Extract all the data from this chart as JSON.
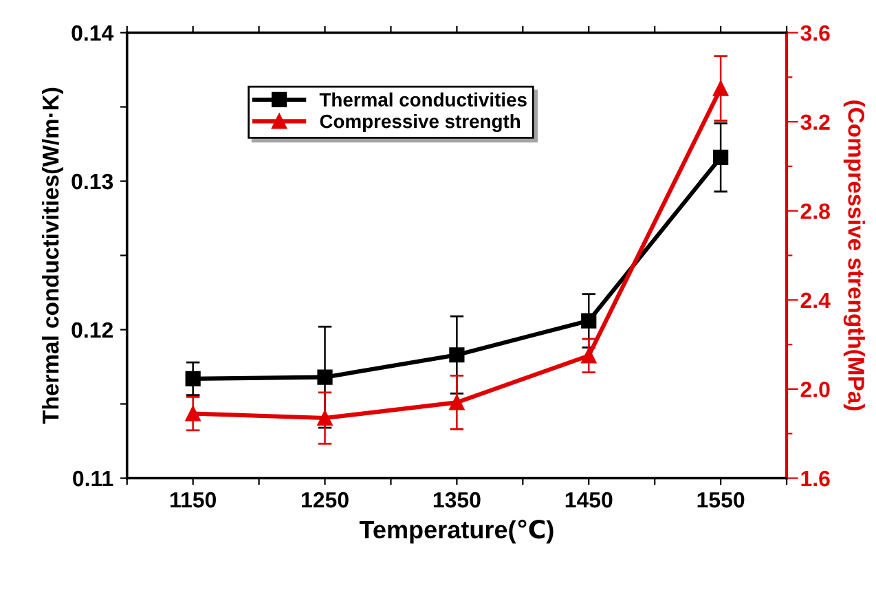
{
  "chart_data": {
    "type": "line",
    "xlabel": "Temperature(℃)",
    "ylabel": "Thermal conductivities(W/m·K)",
    "y2label": "(Compressive strength(MPa)",
    "x": [
      1150,
      1250,
      1350,
      1450,
      1550
    ],
    "xlim": [
      1100,
      1600
    ],
    "xticks": [
      {
        "value": 1100,
        "label": null
      },
      1150,
      {
        "value": 1200,
        "label": null
      },
      1250,
      {
        "value": 1300,
        "label": null
      },
      1350,
      {
        "value": 1400,
        "label": null
      },
      1450,
      {
        "value": 1500,
        "label": null
      },
      1550,
      {
        "value": 1600,
        "label": null
      }
    ],
    "ylim": [
      0.11,
      0.14
    ],
    "yticks": [
      0.11,
      {
        "value": 0.115,
        "label": null
      },
      0.12,
      {
        "value": 0.125,
        "label": null
      },
      0.13,
      {
        "value": 0.135,
        "label": null
      },
      0.14
    ],
    "y2lim": [
      1.6,
      3.6
    ],
    "y2ticks": [
      1.6,
      {
        "value": 1.8,
        "label": null
      },
      {
        "value": 2.0,
        "label": "2.0"
      },
      {
        "value": 2.2,
        "label": null
      },
      2.4,
      {
        "value": 2.6,
        "label": null
      },
      2.8,
      {
        "value": 3.0,
        "label": null
      },
      3.2,
      {
        "value": 3.4,
        "label": null
      },
      3.6
    ],
    "grid": false,
    "legend": "top",
    "line_style": "solid",
    "series": [
      {
        "name": "Thermal conductivities",
        "color": "#000000",
        "marker": "square",
        "values": [
          0.1167,
          0.1168,
          0.1183,
          0.1206,
          0.1316
        ],
        "errors": [
          0.0011,
          0.0034,
          0.0026,
          0.0018,
          0.0023
        ]
      },
      {
        "name": "Compressive strength",
        "color": "#e00000",
        "marker": "triangle",
        "axis": "y2",
        "values": [
          1.89,
          1.87,
          1.94,
          2.15,
          3.35
        ],
        "errors": [
          0.075,
          0.115,
          0.12,
          0.075,
          0.145
        ]
      }
    ]
  }
}
